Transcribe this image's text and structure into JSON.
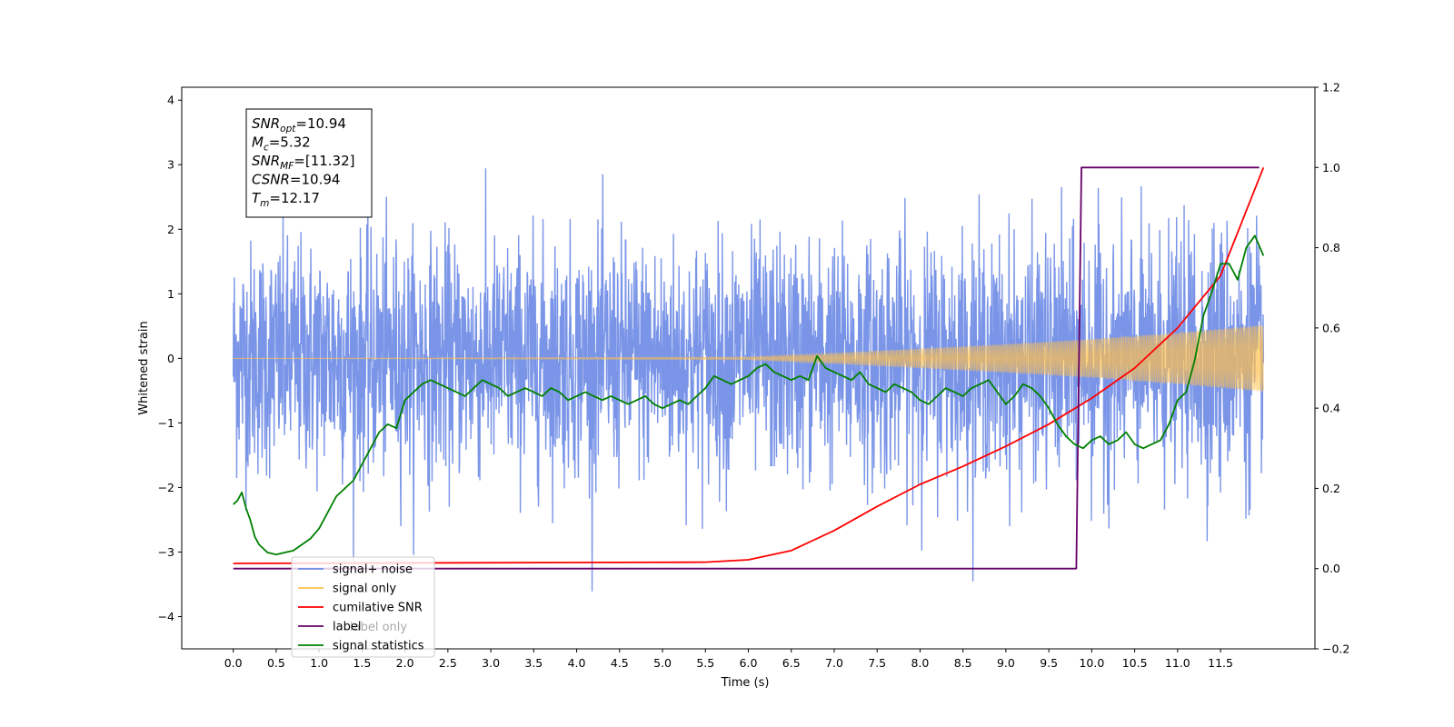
{
  "chart_data": {
    "type": "line",
    "xlabel": "Time (s)",
    "ylabel": "Whitened strain",
    "xlim": [
      -0.6,
      12.6
    ],
    "ylim": [
      -4.5,
      4.2
    ],
    "y2lim": [
      -0.2,
      1.2
    ],
    "x_ticks": [
      0.0,
      0.5,
      1.0,
      1.5,
      2.0,
      2.5,
      3.0,
      3.5,
      4.0,
      4.5,
      5.0,
      5.5,
      6.0,
      6.5,
      7.0,
      7.5,
      8.0,
      8.5,
      9.0,
      9.5,
      10.0,
      10.5,
      11.0,
      11.5
    ],
    "x_tick_labels": [
      "0.0",
      "0.5",
      "1.0",
      "1.5",
      "2.0",
      "2.5",
      "3.0",
      "3.5",
      "4.0",
      "4.5",
      "5.0",
      "5.5",
      "6.0",
      "6.5",
      "7.0",
      "7.5",
      "8.0",
      "8.5",
      "9.0",
      "9.5",
      "10.0",
      "10.5",
      "11.0",
      "11.5"
    ],
    "y_ticks": [
      -4,
      -3,
      -2,
      -1,
      0,
      1,
      2,
      3,
      4
    ],
    "y_tick_labels": [
      "−4",
      "−3",
      "−2",
      "−1",
      "0",
      "1",
      "2",
      "3",
      "4"
    ],
    "y2_ticks": [
      -0.2,
      0.0,
      0.2,
      0.4,
      0.6,
      0.8,
      1.0,
      1.2
    ],
    "y2_tick_labels": [
      "−0.2",
      "0.0",
      "0.2",
      "0.4",
      "0.6",
      "0.8",
      "1.0",
      "1.2"
    ],
    "grid": false,
    "legend": {
      "location": "lower-left",
      "entries": [
        {
          "label": "signal+ noise",
          "color": "#6b8ae6"
        },
        {
          "label": "signal only",
          "color": "#ffc04d"
        },
        {
          "label": "cumilative SNR",
          "color": "#ff0000"
        },
        {
          "label": "label",
          "color": "#660066"
        },
        {
          "label": "signal statistics",
          "color": "#008000"
        }
      ],
      "ghost_text": "label only"
    },
    "annotation": {
      "lines": [
        {
          "base": "SNR",
          "sub": "opt",
          "value": "=10.94"
        },
        {
          "base": "M",
          "sub": "c",
          "value": "=5.32"
        },
        {
          "base": "SNR",
          "sub": "MF",
          "value": "=[11.32]"
        },
        {
          "base": "CSNR",
          "sub": "",
          "value": "=10.94"
        },
        {
          "base": "T",
          "sub": "m",
          "value": "=12.17"
        }
      ]
    },
    "series": [
      {
        "name": "signal+ noise",
        "axis": "left",
        "color": "#6b8ae6",
        "description": "whitened noisy strain, approx ±2.5 spread, t 0 to 12",
        "t_range": [
          0.0,
          12.0
        ],
        "noise_std": 0.9
      },
      {
        "name": "signal only",
        "axis": "left",
        "color": "#ffc04d",
        "description": "chirp with growing amplitude, ~0 until 6s, reaching ±0.5 at 12s",
        "t_range": [
          0.0,
          12.0
        ],
        "envelope": [
          [
            0,
            0.0
          ],
          [
            6.0,
            0.02
          ],
          [
            7.0,
            0.08
          ],
          [
            8.0,
            0.15
          ],
          [
            9.0,
            0.22
          ],
          [
            10.0,
            0.3
          ],
          [
            11.0,
            0.4
          ],
          [
            12.0,
            0.52
          ]
        ]
      },
      {
        "name": "cumilative SNR",
        "axis": "right",
        "color": "#ff0000",
        "points": [
          [
            0.0,
            0.013
          ],
          [
            5.5,
            0.016
          ],
          [
            6.0,
            0.022
          ],
          [
            6.5,
            0.045
          ],
          [
            7.0,
            0.095
          ],
          [
            7.5,
            0.155
          ],
          [
            8.0,
            0.21
          ],
          [
            8.5,
            0.255
          ],
          [
            9.0,
            0.305
          ],
          [
            9.5,
            0.36
          ],
          [
            10.0,
            0.425
          ],
          [
            10.5,
            0.5
          ],
          [
            11.0,
            0.6
          ],
          [
            11.5,
            0.73
          ],
          [
            12.0,
            1.0
          ]
        ]
      },
      {
        "name": "label",
        "axis": "right",
        "color": "#660066",
        "points": [
          [
            0.0,
            0.0
          ],
          [
            9.82,
            0.0
          ],
          [
            9.88,
            1.0
          ],
          [
            11.95,
            1.0
          ]
        ]
      },
      {
        "name": "signal statistics",
        "axis": "right",
        "color": "#008000",
        "points": [
          [
            0.0,
            0.16
          ],
          [
            0.05,
            0.17
          ],
          [
            0.1,
            0.19
          ],
          [
            0.15,
            0.15
          ],
          [
            0.2,
            0.12
          ],
          [
            0.25,
            0.08
          ],
          [
            0.3,
            0.06
          ],
          [
            0.35,
            0.05
          ],
          [
            0.4,
            0.04
          ],
          [
            0.5,
            0.035
          ],
          [
            0.6,
            0.04
          ],
          [
            0.7,
            0.045
          ],
          [
            0.8,
            0.06
          ],
          [
            0.9,
            0.075
          ],
          [
            1.0,
            0.1
          ],
          [
            1.1,
            0.14
          ],
          [
            1.2,
            0.18
          ],
          [
            1.3,
            0.2
          ],
          [
            1.4,
            0.22
          ],
          [
            1.5,
            0.26
          ],
          [
            1.6,
            0.3
          ],
          [
            1.7,
            0.34
          ],
          [
            1.8,
            0.36
          ],
          [
            1.9,
            0.35
          ],
          [
            2.0,
            0.42
          ],
          [
            2.1,
            0.44
          ],
          [
            2.2,
            0.46
          ],
          [
            2.3,
            0.47
          ],
          [
            2.4,
            0.46
          ],
          [
            2.5,
            0.45
          ],
          [
            2.6,
            0.44
          ],
          [
            2.7,
            0.43
          ],
          [
            2.8,
            0.45
          ],
          [
            2.9,
            0.47
          ],
          [
            3.0,
            0.46
          ],
          [
            3.1,
            0.45
          ],
          [
            3.2,
            0.43
          ],
          [
            3.3,
            0.44
          ],
          [
            3.4,
            0.45
          ],
          [
            3.5,
            0.44
          ],
          [
            3.6,
            0.43
          ],
          [
            3.7,
            0.45
          ],
          [
            3.8,
            0.44
          ],
          [
            3.9,
            0.42
          ],
          [
            4.0,
            0.43
          ],
          [
            4.1,
            0.44
          ],
          [
            4.2,
            0.43
          ],
          [
            4.3,
            0.42
          ],
          [
            4.4,
            0.43
          ],
          [
            4.5,
            0.42
          ],
          [
            4.6,
            0.41
          ],
          [
            4.7,
            0.42
          ],
          [
            4.8,
            0.43
          ],
          [
            4.9,
            0.41
          ],
          [
            5.0,
            0.4
          ],
          [
            5.1,
            0.41
          ],
          [
            5.2,
            0.42
          ],
          [
            5.3,
            0.41
          ],
          [
            5.4,
            0.43
          ],
          [
            5.5,
            0.45
          ],
          [
            5.6,
            0.48
          ],
          [
            5.7,
            0.47
          ],
          [
            5.8,
            0.46
          ],
          [
            5.9,
            0.47
          ],
          [
            6.0,
            0.48
          ],
          [
            6.1,
            0.5
          ],
          [
            6.2,
            0.51
          ],
          [
            6.3,
            0.49
          ],
          [
            6.4,
            0.48
          ],
          [
            6.5,
            0.47
          ],
          [
            6.6,
            0.48
          ],
          [
            6.7,
            0.47
          ],
          [
            6.8,
            0.53
          ],
          [
            6.9,
            0.5
          ],
          [
            7.0,
            0.49
          ],
          [
            7.1,
            0.48
          ],
          [
            7.2,
            0.47
          ],
          [
            7.3,
            0.49
          ],
          [
            7.4,
            0.46
          ],
          [
            7.5,
            0.45
          ],
          [
            7.6,
            0.44
          ],
          [
            7.7,
            0.46
          ],
          [
            7.8,
            0.45
          ],
          [
            7.9,
            0.44
          ],
          [
            8.0,
            0.42
          ],
          [
            8.1,
            0.41
          ],
          [
            8.2,
            0.43
          ],
          [
            8.3,
            0.45
          ],
          [
            8.4,
            0.44
          ],
          [
            8.5,
            0.43
          ],
          [
            8.6,
            0.45
          ],
          [
            8.7,
            0.46
          ],
          [
            8.8,
            0.47
          ],
          [
            8.9,
            0.44
          ],
          [
            9.0,
            0.41
          ],
          [
            9.1,
            0.43
          ],
          [
            9.2,
            0.46
          ],
          [
            9.3,
            0.45
          ],
          [
            9.4,
            0.43
          ],
          [
            9.5,
            0.4
          ],
          [
            9.6,
            0.36
          ],
          [
            9.7,
            0.33
          ],
          [
            9.8,
            0.31
          ],
          [
            9.9,
            0.3
          ],
          [
            10.0,
            0.32
          ],
          [
            10.1,
            0.33
          ],
          [
            10.2,
            0.31
          ],
          [
            10.3,
            0.32
          ],
          [
            10.4,
            0.34
          ],
          [
            10.5,
            0.31
          ],
          [
            10.6,
            0.3
          ],
          [
            10.7,
            0.31
          ],
          [
            10.8,
            0.32
          ],
          [
            10.9,
            0.36
          ],
          [
            11.0,
            0.42
          ],
          [
            11.1,
            0.44
          ],
          [
            11.2,
            0.52
          ],
          [
            11.3,
            0.63
          ],
          [
            11.4,
            0.69
          ],
          [
            11.5,
            0.76
          ],
          [
            11.6,
            0.76
          ],
          [
            11.7,
            0.72
          ],
          [
            11.8,
            0.8
          ],
          [
            11.9,
            0.83
          ],
          [
            12.0,
            0.78
          ]
        ]
      }
    ]
  }
}
